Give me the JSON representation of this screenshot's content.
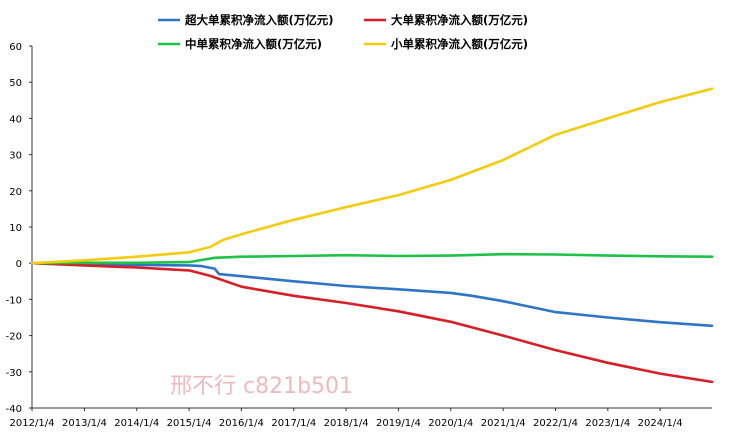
{
  "chart_data": {
    "type": "line",
    "title": "",
    "xlabel": "",
    "ylabel": "",
    "ylim": [
      -40,
      60
    ],
    "yticks": [
      60,
      50,
      40,
      30,
      20,
      10,
      0,
      -10,
      -20,
      -30,
      -40
    ],
    "xticks": [
      "2012/1/4",
      "2013/1/4",
      "2014/1/4",
      "2015/1/4",
      "2016/1/4",
      "2017/1/4",
      "2018/1/4",
      "2019/1/4",
      "2020/1/4",
      "2021/1/4",
      "2022/1/4",
      "2023/1/4",
      "2024/1/4"
    ],
    "x_end": "2024/12/31",
    "grid": false,
    "legend_position": "top",
    "series": [
      {
        "name": "超大单累积净流入额(万亿元)",
        "color": "#2e75c6",
        "x": [
          "2012/1/4",
          "2013/1/4",
          "2014/1/4",
          "2015/1/4",
          "2015/4/1",
          "2015/7/1",
          "2015/8/1",
          "2016/1/4",
          "2017/1/4",
          "2018/1/4",
          "2019/1/4",
          "2020/1/4",
          "2020/6/1",
          "2021/1/4",
          "2022/1/4",
          "2023/1/4",
          "2024/1/4",
          "2024/12/31"
        ],
        "values": [
          0,
          -0.3,
          -0.5,
          -0.6,
          -0.8,
          -1.5,
          -3.0,
          -3.6,
          -5.0,
          -6.3,
          -7.2,
          -8.2,
          -9.0,
          -10.5,
          -13.5,
          -15.0,
          -16.3,
          -17.3
        ]
      },
      {
        "name": "大单累积净流入额(万亿元)",
        "color": "#d61f26",
        "x": [
          "2012/1/4",
          "2013/1/4",
          "2014/1/4",
          "2015/1/4",
          "2015/6/1",
          "2016/1/4",
          "2017/1/4",
          "2018/1/4",
          "2019/1/4",
          "2020/1/4",
          "2021/1/4",
          "2022/1/4",
          "2023/1/4",
          "2024/1/4",
          "2024/12/31"
        ],
        "values": [
          0,
          -0.6,
          -1.2,
          -2.0,
          -3.5,
          -6.5,
          -9.0,
          -11.0,
          -13.3,
          -16.2,
          -20.0,
          -24.0,
          -27.5,
          -30.5,
          -32.8
        ]
      },
      {
        "name": "中单累积净流入额(万亿元)",
        "color": "#1fc14b",
        "x": [
          "2012/1/4",
          "2013/1/4",
          "2014/1/4",
          "2015/1/4",
          "2015/7/1",
          "2016/1/4",
          "2017/1/4",
          "2018/1/4",
          "2019/1/4",
          "2020/1/4",
          "2021/1/4",
          "2022/1/4",
          "2023/1/4",
          "2024/1/4",
          "2024/12/31"
        ],
        "values": [
          0,
          0.1,
          0.1,
          0.3,
          1.5,
          1.8,
          2.0,
          2.2,
          2.0,
          2.1,
          2.5,
          2.4,
          2.1,
          1.9,
          1.8
        ]
      },
      {
        "name": "小单累积净流入额(万亿元)",
        "color": "#f5cb0f",
        "x": [
          "2012/1/4",
          "2013/1/4",
          "2014/1/4",
          "2015/1/4",
          "2015/6/1",
          "2015/9/1",
          "2016/1/4",
          "2017/1/4",
          "2018/1/4",
          "2019/1/4",
          "2020/1/4",
          "2021/1/4",
          "2022/1/4",
          "2023/1/4",
          "2024/1/4",
          "2024/12/31"
        ],
        "values": [
          0,
          0.8,
          1.8,
          3.0,
          4.5,
          6.5,
          8.0,
          12.0,
          15.5,
          18.8,
          23.0,
          28.5,
          35.5,
          40.0,
          44.5,
          48.2
        ]
      }
    ]
  },
  "watermark_text": "邢不行 c821b501"
}
